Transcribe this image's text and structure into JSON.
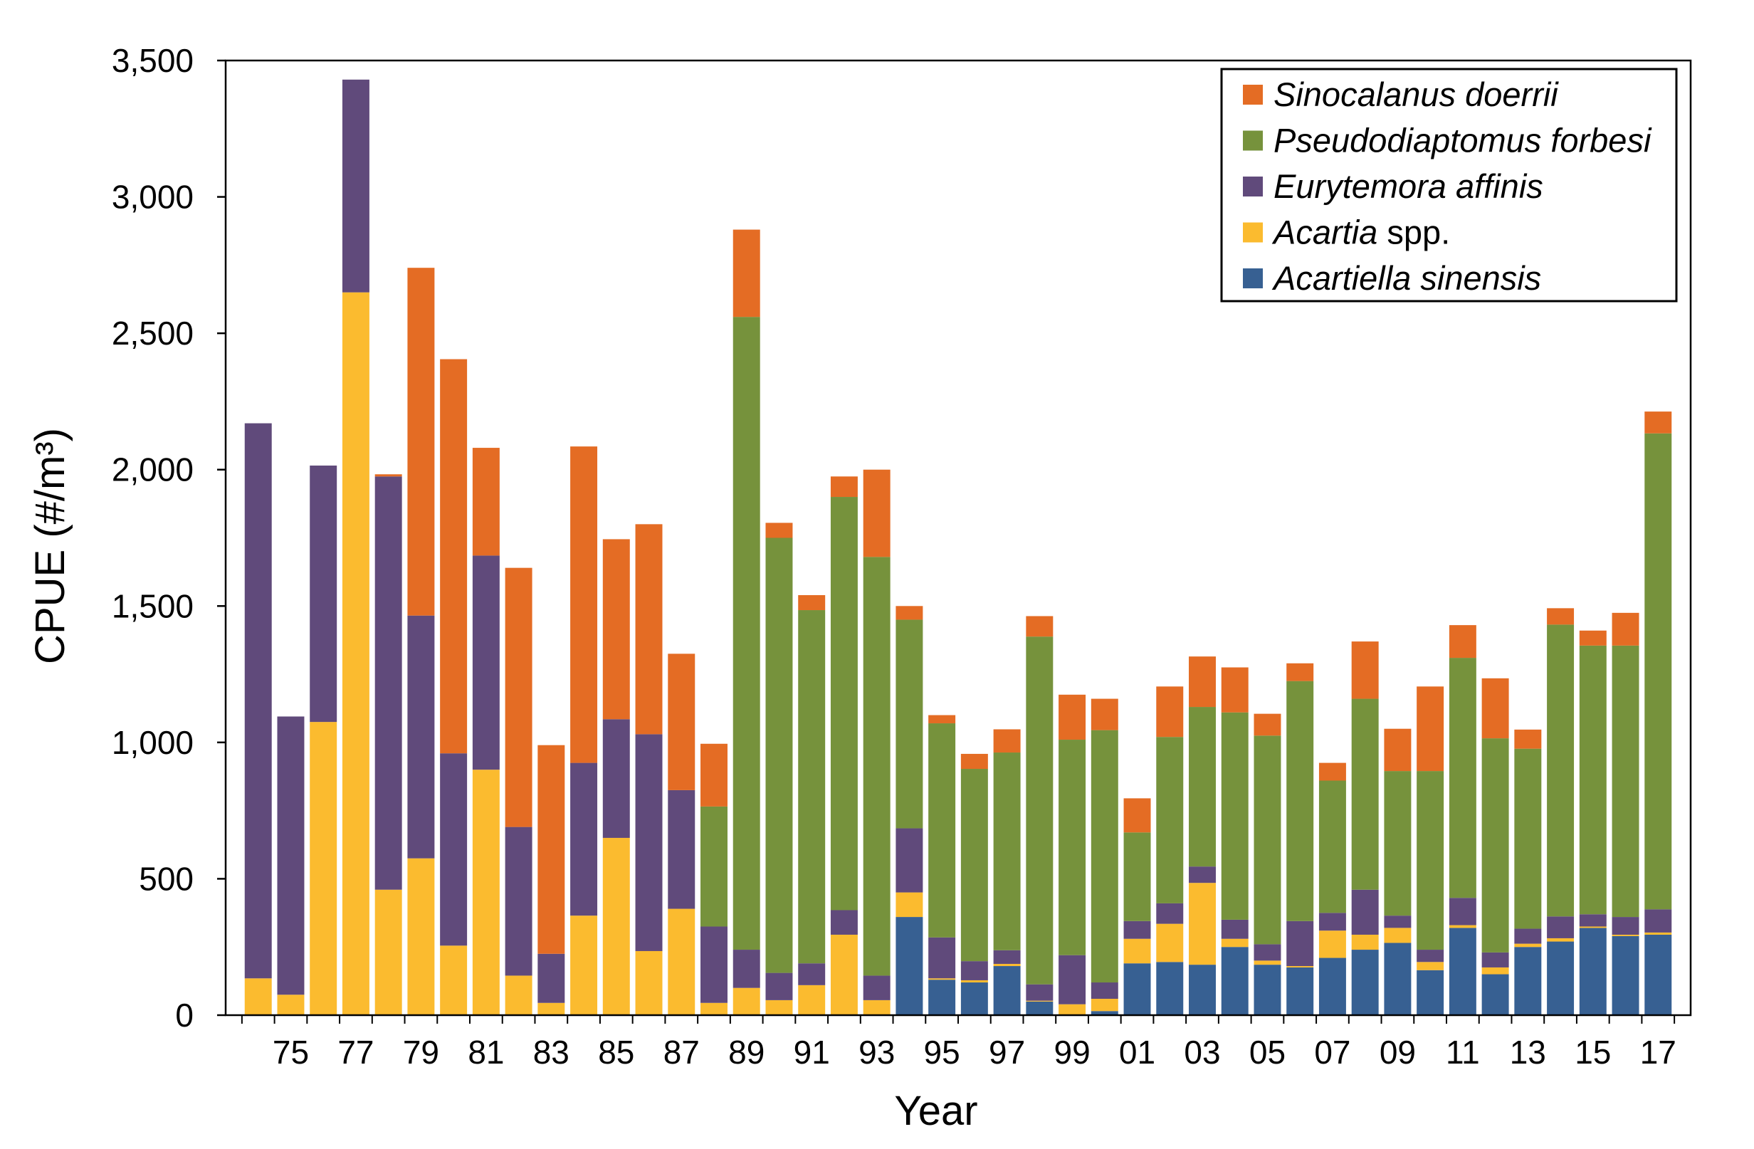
{
  "chart_data": {
    "type": "bar",
    "stacked": true,
    "xlabel": "Year",
    "ylabel": "CPUE (#/m³)",
    "ylim": [
      0,
      3500
    ],
    "yticks": [
      0,
      500,
      1000,
      1500,
      2000,
      2500,
      3000,
      3500
    ],
    "ytick_labels": [
      "0",
      "500",
      "1,000",
      "1,500",
      "2,000",
      "2,500",
      "3,000",
      "3,500"
    ],
    "x": [
      1974,
      1975,
      1976,
      1977,
      1978,
      1979,
      1980,
      1981,
      1982,
      1983,
      1984,
      1985,
      1986,
      1987,
      1988,
      1989,
      1990,
      1991,
      1992,
      1993,
      1994,
      1995,
      1996,
      1997,
      1998,
      1999,
      2000,
      2001,
      2002,
      2003,
      2004,
      2005,
      2006,
      2007,
      2008,
      2009,
      2010,
      2011,
      2012,
      2013,
      2014,
      2015,
      2016,
      2017
    ],
    "xtick_years": [
      1975,
      1977,
      1979,
      1981,
      1983,
      1985,
      1987,
      1989,
      1991,
      1993,
      1995,
      1997,
      1999,
      2001,
      2003,
      2005,
      2007,
      2009,
      2011,
      2013,
      2015,
      2017
    ],
    "xtick_labels": [
      "75",
      "77",
      "79",
      "81",
      "83",
      "85",
      "87",
      "89",
      "91",
      "93",
      "95",
      "97",
      "99",
      "01",
      "03",
      "05",
      "07",
      "09",
      "11",
      "13",
      "15",
      "17"
    ],
    "grid": false,
    "legend_position": "top-right",
    "series": [
      {
        "name": "Acartiella sinensis",
        "color": "#376092",
        "values": [
          0,
          0,
          0,
          0,
          0,
          0,
          0,
          0,
          0,
          0,
          0,
          0,
          0,
          0,
          0,
          0,
          0,
          0,
          0,
          0,
          360,
          130,
          120,
          180,
          50,
          0,
          15,
          190,
          195,
          185,
          250,
          185,
          175,
          210,
          240,
          265,
          165,
          320,
          150,
          250,
          270,
          320,
          290,
          295
        ]
      },
      {
        "name": "Acartia spp.",
        "color": "#FBBB2F",
        "values": [
          135,
          75,
          1075,
          2650,
          460,
          575,
          255,
          900,
          145,
          45,
          365,
          650,
          235,
          390,
          45,
          100,
          55,
          110,
          295,
          55,
          90,
          5,
          8,
          8,
          3,
          40,
          45,
          90,
          140,
          300,
          30,
          15,
          5,
          100,
          55,
          55,
          30,
          10,
          25,
          12,
          12,
          5,
          5,
          8
        ]
      },
      {
        "name": "Eurytemora affinis",
        "color": "#604A7B",
        "values": [
          2035,
          1020,
          940,
          780,
          1515,
          890,
          705,
          785,
          545,
          180,
          560,
          435,
          795,
          435,
          280,
          140,
          100,
          80,
          90,
          90,
          235,
          150,
          70,
          50,
          60,
          180,
          60,
          65,
          75,
          60,
          70,
          60,
          165,
          65,
          165,
          45,
          45,
          100,
          55,
          55,
          80,
          45,
          65,
          85
        ]
      },
      {
        "name": "Pseudodiaptomus forbesi",
        "color": "#76923C",
        "values": [
          0,
          0,
          0,
          0,
          0,
          0,
          0,
          0,
          0,
          0,
          0,
          0,
          0,
          0,
          440,
          2320,
          1595,
          1295,
          1515,
          1535,
          765,
          785,
          705,
          725,
          1275,
          790,
          925,
          325,
          610,
          585,
          760,
          765,
          880,
          485,
          700,
          530,
          655,
          880,
          785,
          660,
          1070,
          985,
          995,
          1745
        ]
      },
      {
        "name": "Sinocalanus doerrii",
        "color": "#E46C24",
        "values": [
          0,
          0,
          0,
          0,
          8,
          1275,
          1445,
          395,
          950,
          765,
          1160,
          660,
          770,
          500,
          230,
          320,
          55,
          55,
          75,
          320,
          50,
          30,
          55,
          85,
          75,
          165,
          115,
          125,
          185,
          185,
          165,
          80,
          65,
          65,
          210,
          155,
          310,
          120,
          220,
          70,
          60,
          55,
          120,
          80
        ]
      }
    ]
  }
}
